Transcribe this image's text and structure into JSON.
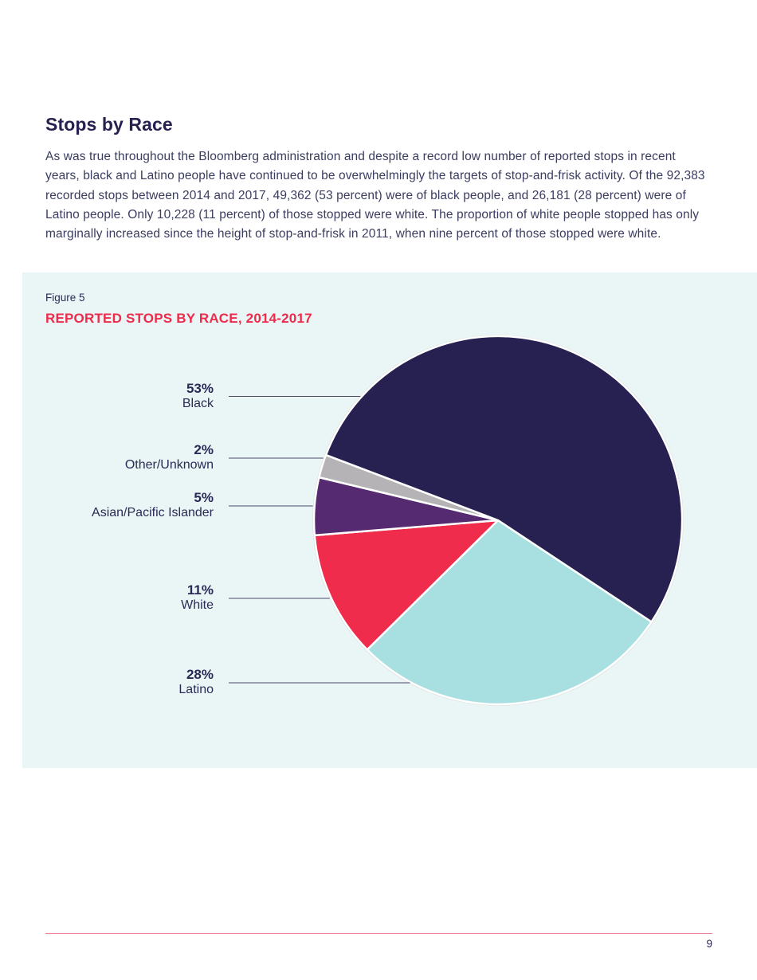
{
  "page": {
    "heading": "Stops by Race",
    "body_text": "As was true throughout the Bloomberg administration and despite a record low number of reported stops in recent years, black and Latino people have continued to be overwhelmingly the targets of stop-and-frisk activity. Of the 92,383 recorded stops between 2014 and 2017, 49,362 (53 percent) were of black people, and 26,181 (28 percent) were of Latino people. Only 10,228 (11 percent) of those stopped were white. The proportion of white people stopped has only marginally increased since the height of stop-and-frisk in 2011, when nine percent of those stopped were white.",
    "page_number": "9"
  },
  "figure": {
    "label": "Figure 5",
    "title": "REPORTED STOPS BY RACE, 2014-2017",
    "background_color": "#e9f6f5",
    "title_color": "#ee2b4b"
  },
  "chart_data": {
    "type": "pie",
    "title": "REPORTED STOPS BY RACE, 2014-2017",
    "unit": "percent",
    "legend_position": "left labels with leader lines",
    "segments": [
      {
        "label": "Black",
        "value": 53,
        "display": "53%",
        "color": "#262150"
      },
      {
        "label": "Other/Unknown",
        "value": 2,
        "display": "2%",
        "color": "#b5b3b5"
      },
      {
        "label": "Asian/Pacific Islander",
        "value": 5,
        "display": "5%",
        "color": "#562a70"
      },
      {
        "label": "White",
        "value": 11,
        "display": "11%",
        "color": "#ef2c4c"
      },
      {
        "label": "Latino",
        "value": 28,
        "display": "28%",
        "color": "#a8e0e2"
      }
    ],
    "colors": {
      "slice_gap_stroke": "#ffffff",
      "outer_ring": "#d9d9d9",
      "leader_line": "#4b4b66"
    }
  }
}
